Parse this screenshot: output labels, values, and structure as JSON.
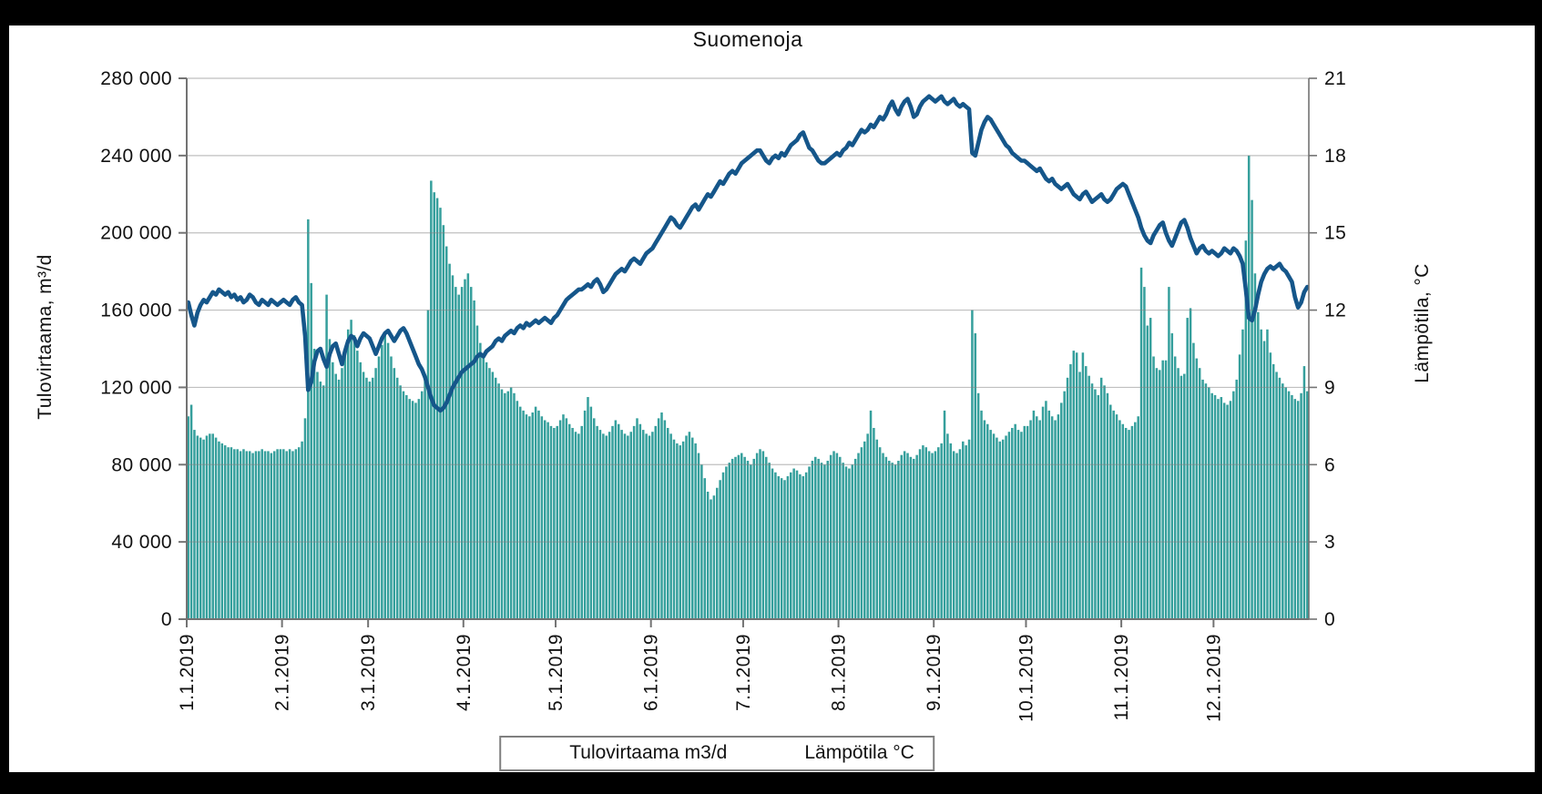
{
  "title": "Suomenoja",
  "left_axis": {
    "title": "Tulovirtaama, m³/d",
    "tick_labels": [
      "280 000",
      "240 000",
      "200 000",
      "160 000",
      "120 000",
      "80 000",
      "40 000",
      "0"
    ],
    "min": 0,
    "max": 280000,
    "step": 40000
  },
  "right_axis": {
    "title": "Lämpötila, °C",
    "tick_labels": [
      "21",
      "18",
      "15",
      "12",
      "9",
      "6",
      "3",
      "0"
    ],
    "min": 0,
    "max": 21,
    "step": 3
  },
  "x_axis": {
    "tick_labels": [
      "1.1.2019",
      "2.1.2019",
      "3.1.2019",
      "4.1.2019",
      "5.1.2019",
      "6.1.2019",
      "7.1.2019",
      "8.1.2019",
      "9.1.2019",
      "10.1.2019",
      "11.1.2019",
      "12.1.2019"
    ],
    "days_per_month": [
      31,
      28,
      31,
      30,
      31,
      30,
      31,
      31,
      30,
      31,
      30,
      31
    ]
  },
  "legend": {
    "items": [
      {
        "label": "Tulovirtaama m3/d",
        "swatch": "bar",
        "color": "#359f9c"
      },
      {
        "label": "Lämpötila °C",
        "swatch": "line",
        "color": "#15568a"
      }
    ]
  },
  "colors": {
    "bar": "#359f9c",
    "line": "#15568a",
    "grid": "#808080",
    "axis": "#737373",
    "text": "#111111",
    "frame": "#000000",
    "panel": "#ffffff"
  },
  "chart_data": {
    "type": "bar",
    "subtype": "combo-bar-line",
    "title": "Suomenoja",
    "x_unit": "day",
    "x_start": "1.1.2019",
    "x_end": "31.12.2019",
    "xlabel": "",
    "ylabel_left": "Tulovirtaama, m³/d",
    "ylabel_right": "Lämpötila, °C",
    "ylim_left": [
      0,
      280000
    ],
    "ylim_right": [
      0,
      21
    ],
    "grid": "horizontal",
    "legend_position": "bottom",
    "series": [
      {
        "name": "Tulovirtaama m3/d",
        "type": "bar",
        "axis": "left",
        "unit": "m3/d",
        "values": [
          105000,
          111000,
          98000,
          95000,
          94000,
          93000,
          95000,
          96000,
          96000,
          94000,
          92000,
          91000,
          90000,
          89000,
          89000,
          88000,
          88000,
          87000,
          88000,
          87000,
          87000,
          86000,
          87000,
          87000,
          88000,
          87000,
          87000,
          86000,
          87000,
          88000,
          88000,
          88000,
          87000,
          88000,
          87000,
          88000,
          89000,
          92000,
          104000,
          207000,
          174000,
          140000,
          128000,
          123000,
          121000,
          168000,
          145000,
          133000,
          127000,
          124000,
          130000,
          137000,
          150000,
          155000,
          147000,
          139000,
          133000,
          128000,
          125000,
          123000,
          125000,
          130000,
          136000,
          142000,
          147000,
          143000,
          136000,
          130000,
          125000,
          121000,
          118000,
          116000,
          114000,
          113000,
          112000,
          114000,
          118000,
          125000,
          160000,
          227000,
          221000,
          218000,
          213000,
          204000,
          193000,
          184000,
          178000,
          172000,
          168000,
          172000,
          176000,
          179000,
          172000,
          165000,
          152000,
          143000,
          137000,
          133000,
          130000,
          128000,
          125000,
          122000,
          119000,
          117000,
          118000,
          120000,
          117000,
          113000,
          110000,
          108000,
          106000,
          105000,
          107000,
          110000,
          108000,
          105000,
          103000,
          102000,
          100000,
          99000,
          100000,
          103000,
          106000,
          104000,
          101000,
          99000,
          97000,
          96000,
          100000,
          108000,
          115000,
          110000,
          104000,
          100000,
          98000,
          96000,
          95000,
          97000,
          100000,
          103000,
          101000,
          98000,
          96000,
          95000,
          97000,
          100000,
          104000,
          101000,
          98000,
          96000,
          95000,
          97000,
          100000,
          104000,
          107000,
          103000,
          99000,
          96000,
          93000,
          91000,
          90000,
          92000,
          95000,
          97000,
          94000,
          91000,
          86000,
          80000,
          73000,
          66000,
          62000,
          64000,
          68000,
          72000,
          76000,
          79000,
          81000,
          83000,
          84000,
          85000,
          86000,
          84000,
          82000,
          80000,
          83000,
          86000,
          88000,
          87000,
          84000,
          81000,
          78000,
          76000,
          74000,
          73000,
          72000,
          74000,
          76000,
          78000,
          77000,
          75000,
          74000,
          76000,
          79000,
          82000,
          84000,
          83000,
          81000,
          80000,
          82000,
          85000,
          87000,
          86000,
          84000,
          81000,
          79000,
          78000,
          80000,
          83000,
          86000,
          89000,
          92000,
          96000,
          108000,
          99000,
          93000,
          89000,
          86000,
          84000,
          82000,
          81000,
          80000,
          82000,
          85000,
          87000,
          86000,
          84000,
          83000,
          85000,
          88000,
          90000,
          89000,
          87000,
          86000,
          87000,
          89000,
          91000,
          108000,
          96000,
          91000,
          87000,
          86000,
          88000,
          92000,
          90000,
          93000,
          160000,
          148000,
          117000,
          108000,
          103000,
          101000,
          98000,
          96000,
          94000,
          92000,
          93000,
          95000,
          97000,
          99000,
          101000,
          98000,
          97000,
          100000,
          100000,
          103000,
          108000,
          105000,
          103000,
          110000,
          113000,
          108000,
          105000,
          103000,
          106000,
          112000,
          118000,
          125000,
          132000,
          139000,
          138000,
          128000,
          138000,
          131000,
          126000,
          122000,
          119000,
          116000,
          125000,
          121000,
          117000,
          111000,
          108000,
          106000,
          103000,
          101000,
          99000,
          98000,
          100000,
          102000,
          105000,
          182000,
          172000,
          152000,
          156000,
          136000,
          130000,
          129000,
          134000,
          134000,
          172000,
          148000,
          136000,
          130000,
          126000,
          127000,
          156000,
          161000,
          143000,
          135000,
          130000,
          124000,
          122000,
          120000,
          117000,
          116000,
          114000,
          115000,
          112000,
          111000,
          113000,
          118000,
          124000,
          137000,
          150000,
          196000,
          240000,
          217000,
          179000,
          159000,
          150000,
          144000,
          150000,
          138000,
          132000,
          128000,
          125000,
          122000,
          120000,
          118000,
          116000,
          114000,
          113000,
          117000,
          131000,
          118000
        ]
      },
      {
        "name": "Lämpötila °C",
        "type": "line",
        "axis": "right",
        "unit": "°C",
        "values": [
          12.3,
          11.8,
          11.4,
          11.9,
          12.2,
          12.4,
          12.3,
          12.5,
          12.7,
          12.6,
          12.8,
          12.7,
          12.6,
          12.7,
          12.5,
          12.6,
          12.4,
          12.5,
          12.3,
          12.4,
          12.6,
          12.5,
          12.3,
          12.2,
          12.4,
          12.3,
          12.2,
          12.4,
          12.3,
          12.2,
          12.3,
          12.4,
          12.3,
          12.2,
          12.4,
          12.5,
          12.3,
          12.2,
          11.0,
          8.9,
          9.2,
          10.0,
          10.4,
          10.5,
          10.1,
          9.8,
          10.3,
          10.6,
          10.7,
          10.3,
          9.9,
          10.4,
          10.8,
          11.0,
          10.9,
          10.6,
          10.9,
          11.1,
          11.0,
          10.9,
          10.6,
          10.3,
          10.6,
          10.9,
          11.1,
          11.2,
          11.0,
          10.8,
          11.0,
          11.2,
          11.3,
          11.1,
          10.8,
          10.5,
          10.2,
          9.9,
          9.7,
          9.4,
          9.0,
          8.6,
          8.3,
          8.2,
          8.1,
          8.2,
          8.4,
          8.7,
          9.0,
          9.2,
          9.4,
          9.6,
          9.7,
          9.8,
          9.9,
          10.0,
          10.2,
          10.3,
          10.2,
          10.4,
          10.5,
          10.6,
          10.8,
          10.9,
          10.8,
          11.0,
          11.1,
          11.2,
          11.1,
          11.3,
          11.4,
          11.3,
          11.5,
          11.4,
          11.5,
          11.6,
          11.5,
          11.6,
          11.7,
          11.6,
          11.5,
          11.7,
          11.8,
          12.0,
          12.2,
          12.4,
          12.5,
          12.6,
          12.7,
          12.8,
          12.8,
          12.9,
          13.0,
          12.9,
          13.1,
          13.2,
          13.0,
          12.7,
          12.8,
          13.0,
          13.2,
          13.4,
          13.5,
          13.6,
          13.5,
          13.7,
          13.9,
          14.0,
          13.9,
          13.8,
          14.0,
          14.2,
          14.3,
          14.4,
          14.6,
          14.8,
          15.0,
          15.2,
          15.4,
          15.6,
          15.5,
          15.3,
          15.2,
          15.4,
          15.6,
          15.8,
          16.0,
          16.1,
          15.9,
          16.1,
          16.3,
          16.5,
          16.4,
          16.6,
          16.8,
          17.0,
          16.9,
          17.1,
          17.3,
          17.4,
          17.3,
          17.5,
          17.7,
          17.8,
          17.9,
          18.0,
          18.1,
          18.2,
          18.2,
          18.0,
          17.8,
          17.7,
          17.9,
          18.0,
          17.9,
          18.1,
          18.0,
          18.2,
          18.4,
          18.5,
          18.6,
          18.8,
          18.9,
          18.6,
          18.3,
          18.2,
          18.0,
          17.8,
          17.7,
          17.7,
          17.8,
          17.9,
          18.0,
          18.1,
          18.0,
          18.2,
          18.3,
          18.5,
          18.4,
          18.6,
          18.8,
          19.0,
          18.9,
          19.0,
          19.2,
          19.1,
          19.3,
          19.5,
          19.4,
          19.6,
          19.9,
          20.1,
          19.8,
          19.6,
          19.9,
          20.1,
          20.2,
          19.9,
          19.5,
          19.6,
          19.9,
          20.1,
          20.2,
          20.3,
          20.2,
          20.1,
          20.2,
          20.3,
          20.1,
          20.0,
          20.1,
          20.2,
          20.0,
          19.9,
          20.0,
          19.9,
          19.8,
          18.1,
          18.0,
          18.5,
          19.0,
          19.3,
          19.5,
          19.4,
          19.2,
          19.0,
          18.8,
          18.6,
          18.4,
          18.3,
          18.1,
          18.0,
          17.9,
          17.8,
          17.8,
          17.7,
          17.6,
          17.5,
          17.4,
          17.5,
          17.3,
          17.1,
          17.0,
          17.1,
          16.9,
          16.8,
          16.7,
          16.8,
          16.9,
          16.7,
          16.5,
          16.4,
          16.3,
          16.5,
          16.6,
          16.4,
          16.2,
          16.3,
          16.4,
          16.5,
          16.3,
          16.2,
          16.3,
          16.5,
          16.7,
          16.8,
          16.9,
          16.8,
          16.5,
          16.2,
          15.9,
          15.6,
          15.2,
          14.9,
          14.7,
          14.6,
          14.9,
          15.1,
          15.3,
          15.4,
          15.0,
          14.7,
          14.5,
          14.8,
          15.1,
          15.4,
          15.5,
          15.2,
          14.8,
          14.5,
          14.2,
          14.4,
          14.5,
          14.3,
          14.2,
          14.3,
          14.2,
          14.1,
          14.2,
          14.4,
          14.3,
          14.2,
          14.4,
          14.3,
          14.1,
          13.8,
          12.8,
          11.7,
          11.6,
          12.0,
          12.6,
          13.1,
          13.4,
          13.6,
          13.7,
          13.6,
          13.7,
          13.8,
          13.6,
          13.5,
          13.3,
          13.1,
          12.5,
          12.1,
          12.3,
          12.7,
          12.9
        ]
      }
    ]
  }
}
